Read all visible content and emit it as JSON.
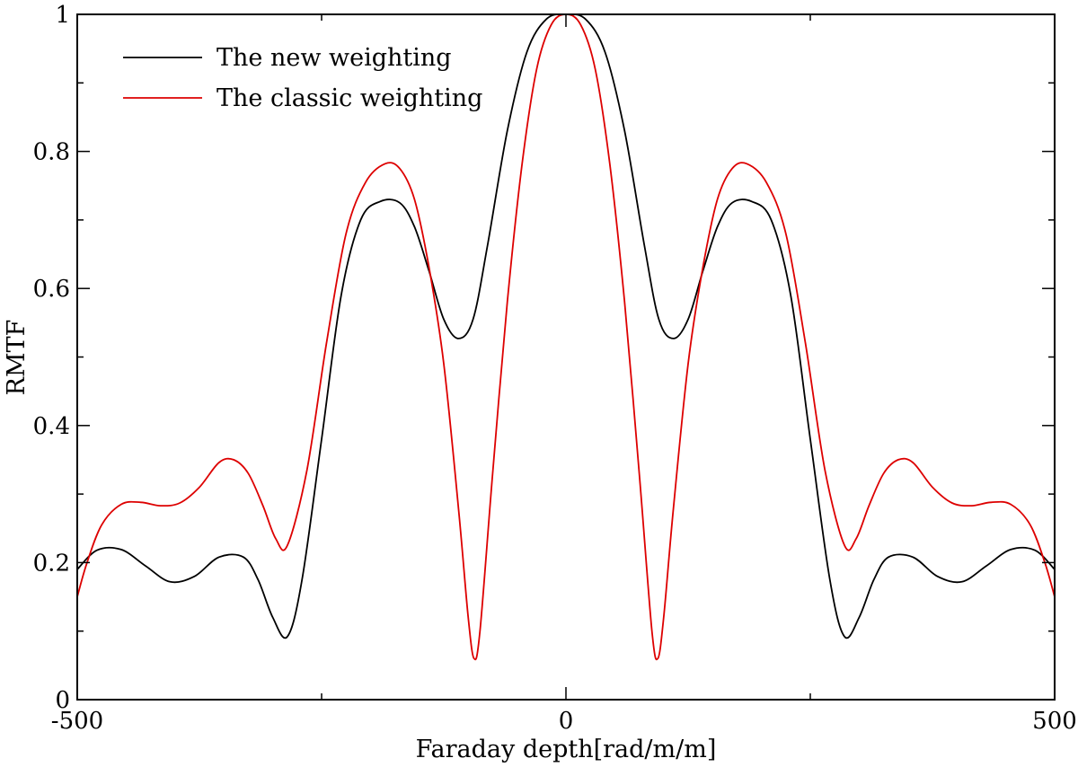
{
  "chart_data": {
    "type": "line",
    "title": "",
    "xlabel": "Faraday depth[rad/m/m]",
    "ylabel": "RMTF",
    "xlim": [
      -500,
      500
    ],
    "ylim": [
      0,
      1
    ],
    "x_ticks": [
      -500,
      0,
      500
    ],
    "x_tick_labels": [
      "-500",
      "0",
      "500"
    ],
    "x_minor_ticks": [
      -250,
      250
    ],
    "y_ticks": [
      0,
      0.2,
      0.4,
      0.6,
      0.8,
      1
    ],
    "y_tick_labels": [
      "0",
      "0.2",
      "0.4",
      "0.6",
      "0.8",
      "1"
    ],
    "y_minor_ticks": [
      0.1,
      0.3,
      0.5,
      0.7,
      0.9
    ],
    "grid": false,
    "legend_position": "top-left",
    "series": [
      {
        "name": "The new weighting",
        "color": "#000000",
        "x": [
          -500,
          -480,
          -455,
          -430,
          -405,
          -380,
          -355,
          -330,
          -315,
          -300,
          -285,
          -270,
          -250,
          -230,
          -210,
          -190,
          -170,
          -155,
          -140,
          -125,
          -110,
          -95,
          -80,
          -60,
          -40,
          -20,
          0,
          20,
          40,
          60,
          80,
          95,
          110,
          125,
          140,
          155,
          170,
          190,
          210,
          230,
          250,
          270,
          285,
          300,
          315,
          330,
          355,
          380,
          405,
          430,
          455,
          480,
          500
        ],
        "y": [
          0.19,
          0.218,
          0.219,
          0.195,
          0.172,
          0.18,
          0.208,
          0.208,
          0.175,
          0.12,
          0.092,
          0.175,
          0.38,
          0.59,
          0.7,
          0.727,
          0.725,
          0.69,
          0.625,
          0.555,
          0.527,
          0.555,
          0.665,
          0.83,
          0.945,
          0.993,
          1.0,
          0.993,
          0.945,
          0.83,
          0.665,
          0.555,
          0.527,
          0.555,
          0.625,
          0.69,
          0.725,
          0.727,
          0.7,
          0.59,
          0.38,
          0.175,
          0.092,
          0.12,
          0.175,
          0.208,
          0.208,
          0.18,
          0.172,
          0.195,
          0.219,
          0.218,
          0.19
        ]
      },
      {
        "name": "The classic weighting",
        "color": "#dd0000",
        "x": [
          -500,
          -490,
          -475,
          -455,
          -435,
          -415,
          -395,
          -375,
          -355,
          -340,
          -325,
          -310,
          -297,
          -285,
          -265,
          -245,
          -225,
          -205,
          -185,
          -170,
          -155,
          -140,
          -125,
          -110,
          -100,
          -94,
          -88,
          -75,
          -60,
          -45,
          -30,
          -15,
          0,
          15,
          30,
          45,
          60,
          75,
          88,
          94,
          100,
          110,
          125,
          140,
          155,
          170,
          185,
          205,
          225,
          245,
          265,
          285,
          297,
          310,
          325,
          340,
          355,
          375,
          395,
          415,
          435,
          455,
          475,
          490,
          500
        ],
        "y": [
          0.15,
          0.2,
          0.255,
          0.285,
          0.288,
          0.283,
          0.287,
          0.31,
          0.346,
          0.35,
          0.33,
          0.283,
          0.235,
          0.225,
          0.335,
          0.52,
          0.68,
          0.755,
          0.782,
          0.775,
          0.73,
          0.63,
          0.49,
          0.28,
          0.12,
          0.06,
          0.1,
          0.33,
          0.58,
          0.78,
          0.92,
          0.985,
          1.0,
          0.985,
          0.92,
          0.78,
          0.58,
          0.33,
          0.1,
          0.06,
          0.12,
          0.28,
          0.49,
          0.63,
          0.73,
          0.775,
          0.782,
          0.755,
          0.68,
          0.52,
          0.335,
          0.225,
          0.235,
          0.283,
          0.33,
          0.35,
          0.346,
          0.31,
          0.287,
          0.283,
          0.288,
          0.285,
          0.255,
          0.2,
          0.15
        ]
      }
    ]
  }
}
